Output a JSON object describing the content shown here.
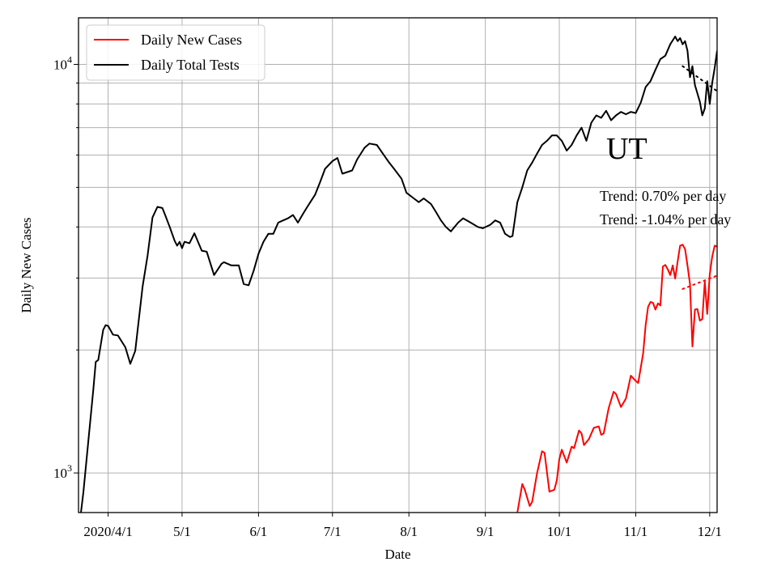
{
  "chart_data": {
    "type": "line",
    "title": "",
    "xlabel": "Date",
    "ylabel": "Daily New Cases",
    "yscale": "log",
    "ylim": [
      800,
      13000
    ],
    "xlim": [
      "2020-03-20",
      "2020-12-04"
    ],
    "grid": true,
    "legend_position": "top-left",
    "x_ticks": [
      {
        "date": "2020-04-01",
        "label": "2020/4/1"
      },
      {
        "date": "2020-05-01",
        "label": "5/1"
      },
      {
        "date": "2020-06-01",
        "label": "6/1"
      },
      {
        "date": "2020-07-01",
        "label": "7/1"
      },
      {
        "date": "2020-08-01",
        "label": "8/1"
      },
      {
        "date": "2020-09-01",
        "label": "9/1"
      },
      {
        "date": "2020-10-01",
        "label": "10/1"
      },
      {
        "date": "2020-11-01",
        "label": "11/1"
      },
      {
        "date": "2020-12-01",
        "label": "12/1"
      }
    ],
    "y_major_ticks": [
      {
        "value": 1000,
        "base": "10",
        "exponent": "3"
      },
      {
        "value": 10000,
        "base": "10",
        "exponent": "4"
      }
    ],
    "y_minor_ticks": [
      2000,
      3000,
      4000,
      5000,
      6000,
      7000,
      8000,
      9000
    ],
    "series": [
      {
        "name": "Daily New Cases",
        "color": "#ff0000",
        "points": [
          [
            "2020-09-14",
            800
          ],
          [
            "2020-09-16",
            940
          ],
          [
            "2020-09-17",
            910
          ],
          [
            "2020-09-19",
            830
          ],
          [
            "2020-09-20",
            850
          ],
          [
            "2020-09-22",
            1000
          ],
          [
            "2020-09-24",
            1130
          ],
          [
            "2020-09-25",
            1120
          ],
          [
            "2020-09-27",
            900
          ],
          [
            "2020-09-29",
            910
          ],
          [
            "2020-09-30",
            960
          ],
          [
            "2020-10-01",
            1080
          ],
          [
            "2020-10-02",
            1140
          ],
          [
            "2020-10-04",
            1060
          ],
          [
            "2020-10-06",
            1160
          ],
          [
            "2020-10-07",
            1150
          ],
          [
            "2020-10-09",
            1270
          ],
          [
            "2020-10-10",
            1250
          ],
          [
            "2020-10-11",
            1170
          ],
          [
            "2020-10-13",
            1210
          ],
          [
            "2020-10-15",
            1290
          ],
          [
            "2020-10-17",
            1300
          ],
          [
            "2020-10-18",
            1240
          ],
          [
            "2020-10-19",
            1250
          ],
          [
            "2020-10-21",
            1440
          ],
          [
            "2020-10-23",
            1580
          ],
          [
            "2020-10-24",
            1560
          ],
          [
            "2020-10-26",
            1450
          ],
          [
            "2020-10-28",
            1520
          ],
          [
            "2020-10-30",
            1730
          ],
          [
            "2020-11-01",
            1680
          ],
          [
            "2020-11-02",
            1660
          ],
          [
            "2020-11-04",
            1960
          ],
          [
            "2020-11-05",
            2300
          ],
          [
            "2020-11-06",
            2550
          ],
          [
            "2020-11-07",
            2620
          ],
          [
            "2020-11-08",
            2610
          ],
          [
            "2020-11-09",
            2510
          ],
          [
            "2020-11-10",
            2600
          ],
          [
            "2020-11-11",
            2570
          ],
          [
            "2020-11-12",
            3200
          ],
          [
            "2020-11-13",
            3230
          ],
          [
            "2020-11-14",
            3150
          ],
          [
            "2020-11-15",
            3050
          ],
          [
            "2020-11-16",
            3220
          ],
          [
            "2020-11-17",
            2990
          ],
          [
            "2020-11-18",
            3300
          ],
          [
            "2020-11-19",
            3600
          ],
          [
            "2020-11-20",
            3620
          ],
          [
            "2020-11-21",
            3530
          ],
          [
            "2020-11-22",
            3220
          ],
          [
            "2020-11-23",
            2900
          ],
          [
            "2020-11-24",
            2040
          ],
          [
            "2020-11-25",
            2510
          ],
          [
            "2020-11-26",
            2520
          ],
          [
            "2020-11-27",
            2360
          ],
          [
            "2020-11-28",
            2380
          ],
          [
            "2020-11-29",
            2940
          ],
          [
            "2020-11-30",
            2450
          ],
          [
            "2020-12-01",
            3060
          ],
          [
            "2020-12-02",
            3380
          ],
          [
            "2020-12-03",
            3600
          ],
          [
            "2020-12-04",
            3580
          ]
        ]
      },
      {
        "name": "Daily Total Tests",
        "color": "#000000",
        "points": [
          [
            "2020-03-21",
            800
          ],
          [
            "2020-03-22",
            900
          ],
          [
            "2020-03-24",
            1200
          ],
          [
            "2020-03-26",
            1600
          ],
          [
            "2020-03-27",
            1870
          ],
          [
            "2020-03-28",
            1890
          ],
          [
            "2020-03-30",
            2240
          ],
          [
            "2020-03-31",
            2300
          ],
          [
            "2020-04-01",
            2290
          ],
          [
            "2020-04-03",
            2180
          ],
          [
            "2020-04-05",
            2170
          ],
          [
            "2020-04-08",
            2030
          ],
          [
            "2020-04-10",
            1850
          ],
          [
            "2020-04-12",
            1990
          ],
          [
            "2020-04-15",
            2860
          ],
          [
            "2020-04-17",
            3400
          ],
          [
            "2020-04-19",
            4220
          ],
          [
            "2020-04-21",
            4480
          ],
          [
            "2020-04-23",
            4450
          ],
          [
            "2020-04-24",
            4300
          ],
          [
            "2020-04-26",
            4000
          ],
          [
            "2020-04-28",
            3700
          ],
          [
            "2020-04-29",
            3600
          ],
          [
            "2020-04-30",
            3680
          ],
          [
            "2020-05-01",
            3550
          ],
          [
            "2020-05-02",
            3680
          ],
          [
            "2020-05-04",
            3650
          ],
          [
            "2020-05-06",
            3860
          ],
          [
            "2020-05-09",
            3500
          ],
          [
            "2020-05-11",
            3480
          ],
          [
            "2020-05-14",
            3050
          ],
          [
            "2020-05-17",
            3250
          ],
          [
            "2020-05-18",
            3280
          ],
          [
            "2020-05-21",
            3220
          ],
          [
            "2020-05-24",
            3220
          ],
          [
            "2020-05-26",
            2900
          ],
          [
            "2020-05-28",
            2880
          ],
          [
            "2020-05-30",
            3120
          ],
          [
            "2020-06-01",
            3440
          ],
          [
            "2020-06-03",
            3680
          ],
          [
            "2020-06-05",
            3850
          ],
          [
            "2020-06-07",
            3850
          ],
          [
            "2020-06-09",
            4100
          ],
          [
            "2020-06-11",
            4150
          ],
          [
            "2020-06-13",
            4200
          ],
          [
            "2020-06-15",
            4280
          ],
          [
            "2020-06-17",
            4100
          ],
          [
            "2020-06-19",
            4300
          ],
          [
            "2020-06-21",
            4500
          ],
          [
            "2020-06-24",
            4800
          ],
          [
            "2020-06-26",
            5150
          ],
          [
            "2020-06-28",
            5550
          ],
          [
            "2020-07-01",
            5800
          ],
          [
            "2020-07-03",
            5900
          ],
          [
            "2020-07-05",
            5400
          ],
          [
            "2020-07-07",
            5450
          ],
          [
            "2020-07-09",
            5500
          ],
          [
            "2020-07-11",
            5850
          ],
          [
            "2020-07-14",
            6250
          ],
          [
            "2020-07-16",
            6400
          ],
          [
            "2020-07-19",
            6350
          ],
          [
            "2020-07-21",
            6100
          ],
          [
            "2020-07-24",
            5750
          ],
          [
            "2020-07-26",
            5550
          ],
          [
            "2020-07-29",
            5250
          ],
          [
            "2020-07-31",
            4850
          ],
          [
            "2020-08-03",
            4700
          ],
          [
            "2020-08-05",
            4600
          ],
          [
            "2020-08-07",
            4700
          ],
          [
            "2020-08-10",
            4550
          ],
          [
            "2020-08-12",
            4350
          ],
          [
            "2020-08-14",
            4150
          ],
          [
            "2020-08-16",
            4000
          ],
          [
            "2020-08-18",
            3900
          ],
          [
            "2020-08-21",
            4100
          ],
          [
            "2020-08-23",
            4200
          ],
          [
            "2020-08-26",
            4100
          ],
          [
            "2020-08-29",
            4000
          ],
          [
            "2020-08-31",
            3970
          ],
          [
            "2020-09-03",
            4050
          ],
          [
            "2020-09-05",
            4150
          ],
          [
            "2020-09-07",
            4100
          ],
          [
            "2020-09-09",
            3850
          ],
          [
            "2020-09-11",
            3780
          ],
          [
            "2020-09-12",
            3800
          ],
          [
            "2020-09-14",
            4600
          ],
          [
            "2020-09-16",
            5000
          ],
          [
            "2020-09-18",
            5500
          ],
          [
            "2020-09-20",
            5750
          ],
          [
            "2020-09-22",
            6050
          ],
          [
            "2020-09-24",
            6350
          ],
          [
            "2020-09-26",
            6500
          ],
          [
            "2020-09-28",
            6700
          ],
          [
            "2020-09-30",
            6700
          ],
          [
            "2020-10-02",
            6500
          ],
          [
            "2020-10-04",
            6150
          ],
          [
            "2020-10-06",
            6350
          ],
          [
            "2020-10-08",
            6700
          ],
          [
            "2020-10-10",
            7000
          ],
          [
            "2020-10-12",
            6500
          ],
          [
            "2020-10-14",
            7200
          ],
          [
            "2020-10-16",
            7500
          ],
          [
            "2020-10-18",
            7400
          ],
          [
            "2020-10-20",
            7700
          ],
          [
            "2020-10-22",
            7300
          ],
          [
            "2020-10-24",
            7500
          ],
          [
            "2020-10-26",
            7650
          ],
          [
            "2020-10-28",
            7550
          ],
          [
            "2020-10-30",
            7650
          ],
          [
            "2020-11-01",
            7600
          ],
          [
            "2020-11-03",
            8050
          ],
          [
            "2020-11-05",
            8800
          ],
          [
            "2020-11-07",
            9100
          ],
          [
            "2020-11-09",
            9700
          ],
          [
            "2020-11-11",
            10300
          ],
          [
            "2020-11-13",
            10500
          ],
          [
            "2020-11-15",
            11200
          ],
          [
            "2020-11-17",
            11700
          ],
          [
            "2020-11-18",
            11400
          ],
          [
            "2020-11-19",
            11600
          ],
          [
            "2020-11-20",
            11200
          ],
          [
            "2020-11-21",
            11400
          ],
          [
            "2020-11-22",
            10800
          ],
          [
            "2020-11-23",
            9300
          ],
          [
            "2020-11-24",
            9900
          ],
          [
            "2020-11-25",
            8900
          ],
          [
            "2020-11-27",
            8100
          ],
          [
            "2020-11-28",
            7500
          ],
          [
            "2020-11-29",
            7800
          ],
          [
            "2020-11-30",
            9100
          ],
          [
            "2020-12-01",
            8000
          ],
          [
            "2020-12-02",
            9000
          ],
          [
            "2020-12-03",
            9800
          ],
          [
            "2020-12-04",
            10800
          ]
        ]
      }
    ],
    "trend_lines": [
      {
        "series": "Daily New Cases",
        "color": "#ff0000",
        "style": "dotted",
        "points": [
          [
            "2020-11-20",
            2820
          ],
          [
            "2020-12-04",
            3040
          ]
        ]
      },
      {
        "series": "Daily Total Tests",
        "color": "#000000",
        "style": "dotted",
        "points": [
          [
            "2020-11-20",
            9900
          ],
          [
            "2020-12-04",
            8600
          ]
        ]
      }
    ],
    "annotations": [
      {
        "text": "UT",
        "role": "state-label"
      },
      {
        "text": "Trend: 0.70% per day",
        "role": "trend-cases"
      },
      {
        "text": "Trend: -1.04% per day",
        "role": "trend-tests"
      }
    ]
  }
}
